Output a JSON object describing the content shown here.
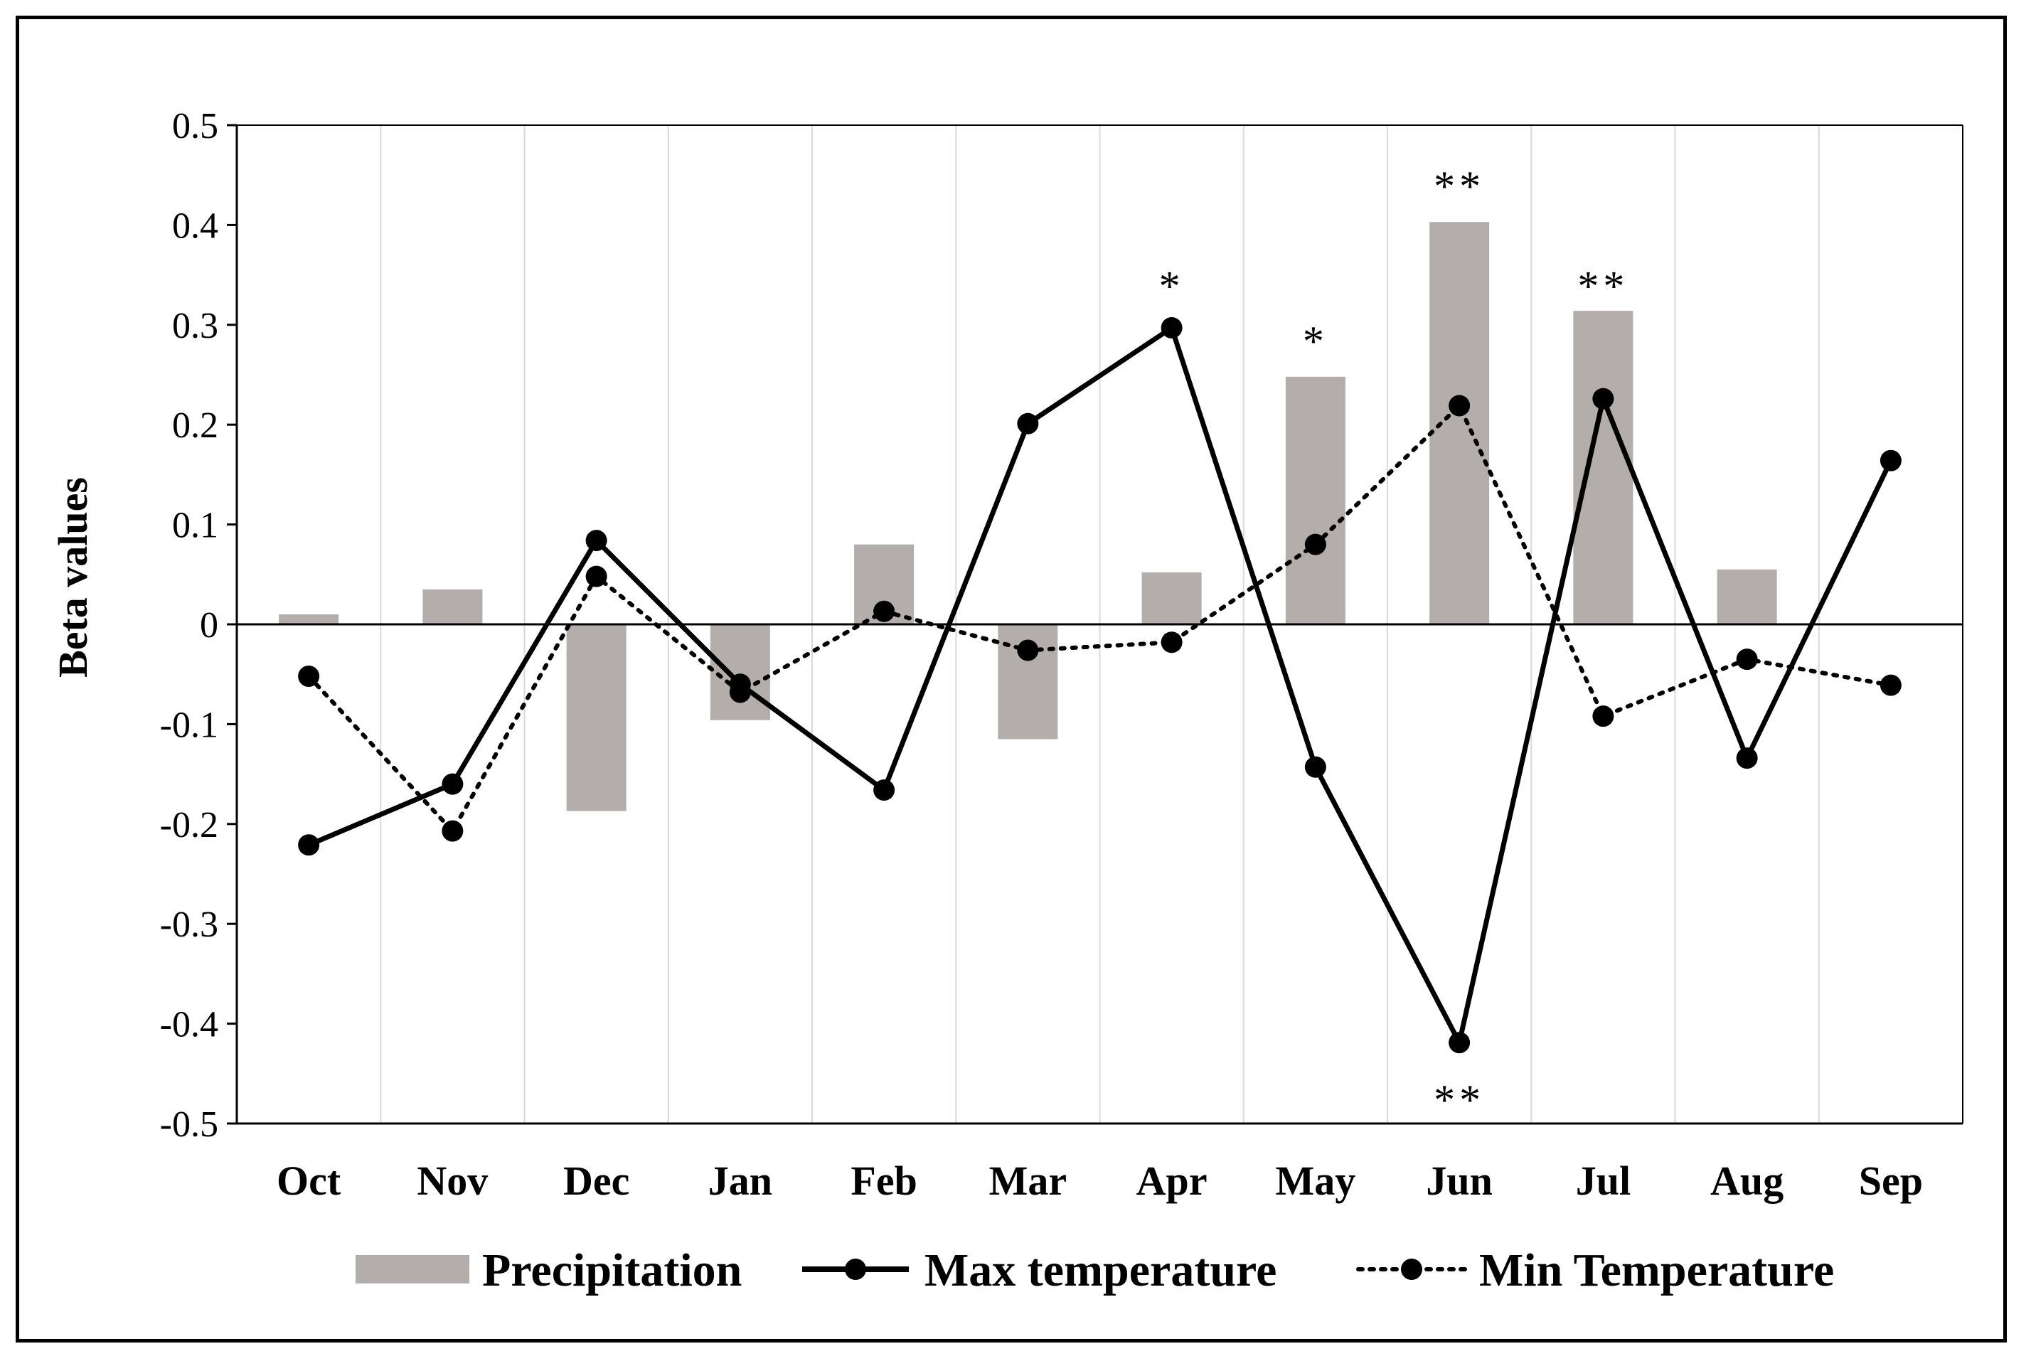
{
  "chart_data": {
    "type": "bar+line",
    "title": "",
    "xlabel": "",
    "ylabel": "Beta values",
    "ylim": [
      -0.5,
      0.5
    ],
    "yticks": [
      "0.5",
      "0.4",
      "0.3",
      "0.2",
      "0.1",
      "0",
      "-0.1",
      "-0.2",
      "-0.3",
      "-0.4",
      "-0.5"
    ],
    "yticks_values": [
      0.5,
      0.4,
      0.3,
      0.2,
      0.1,
      0,
      -0.1,
      -0.2,
      -0.3,
      -0.4,
      -0.5
    ],
    "categories": [
      "Oct",
      "Nov",
      "Dec",
      "Jan",
      "Feb",
      "Mar",
      "Apr",
      "May",
      "Jun",
      "Jul",
      "Aug",
      "Sep"
    ],
    "series": [
      {
        "name": "Precipitation",
        "kind": "bar",
        "color": "#b3aeab",
        "values": [
          0.01,
          0.035,
          -0.187,
          -0.096,
          0.08,
          -0.115,
          0.052,
          0.248,
          0.403,
          0.314,
          0.055,
          0.0
        ]
      },
      {
        "name": "Max temperature",
        "kind": "line",
        "style": "solid",
        "color": "#000000",
        "values": [
          -0.221,
          -0.16,
          0.084,
          -0.06,
          -0.166,
          0.201,
          0.297,
          -0.143,
          -0.419,
          0.226,
          -0.134,
          0.164
        ]
      },
      {
        "name": "Min Temperature",
        "kind": "line",
        "style": "dotted",
        "color": "#000000",
        "values": [
          -0.052,
          -0.207,
          0.048,
          -0.068,
          0.013,
          -0.026,
          -0.018,
          0.08,
          0.219,
          -0.092,
          -0.035,
          -0.061
        ]
      }
    ],
    "annotations": [
      {
        "text": "*",
        "category": "Apr",
        "y": 0.34
      },
      {
        "text": "*",
        "category": "May",
        "y": 0.285
      },
      {
        "text": "**",
        "category": "Jun",
        "y": 0.44
      },
      {
        "text": "**",
        "category": "Jul",
        "y": 0.34
      },
      {
        "text": "**",
        "category": "Jun",
        "y": -0.475
      }
    ],
    "legend": {
      "position": "bottom",
      "entries": [
        "Precipitation",
        "Max temperature",
        "Min Temperature"
      ]
    },
    "grid": "vertical category separators"
  }
}
